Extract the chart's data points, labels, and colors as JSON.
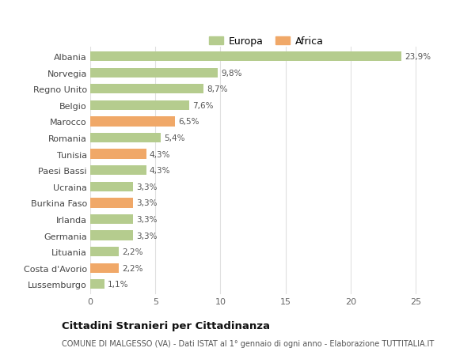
{
  "categories": [
    "Albania",
    "Norvegia",
    "Regno Unito",
    "Belgio",
    "Marocco",
    "Romania",
    "Tunisia",
    "Paesi Bassi",
    "Ucraina",
    "Burkina Faso",
    "Irlanda",
    "Germania",
    "Lituania",
    "Costa d'Avorio",
    "Lussemburgo"
  ],
  "values": [
    23.9,
    9.8,
    8.7,
    7.6,
    6.5,
    5.4,
    4.3,
    4.3,
    3.3,
    3.3,
    3.3,
    3.3,
    2.2,
    2.2,
    1.1
  ],
  "labels": [
    "23,9%",
    "9,8%",
    "8,7%",
    "7,6%",
    "6,5%",
    "5,4%",
    "4,3%",
    "4,3%",
    "3,3%",
    "3,3%",
    "3,3%",
    "3,3%",
    "2,2%",
    "2,2%",
    "1,1%"
  ],
  "continents": [
    "Europa",
    "Europa",
    "Europa",
    "Europa",
    "Africa",
    "Europa",
    "Africa",
    "Europa",
    "Europa",
    "Africa",
    "Europa",
    "Europa",
    "Europa",
    "Africa",
    "Europa"
  ],
  "color_europa": "#b5cc8e",
  "color_africa": "#f0a868",
  "title": "Cittadini Stranieri per Cittadinanza",
  "subtitle": "COMUNE DI MALGESSO (VA) - Dati ISTAT al 1° gennaio di ogni anno - Elaborazione TUTTITALIA.IT",
  "legend_europa": "Europa",
  "legend_africa": "Africa",
  "xlim": [
    0,
    27
  ],
  "xticks": [
    0,
    5,
    10,
    15,
    20,
    25
  ],
  "background_color": "#ffffff",
  "grid_color": "#e0e0e0"
}
